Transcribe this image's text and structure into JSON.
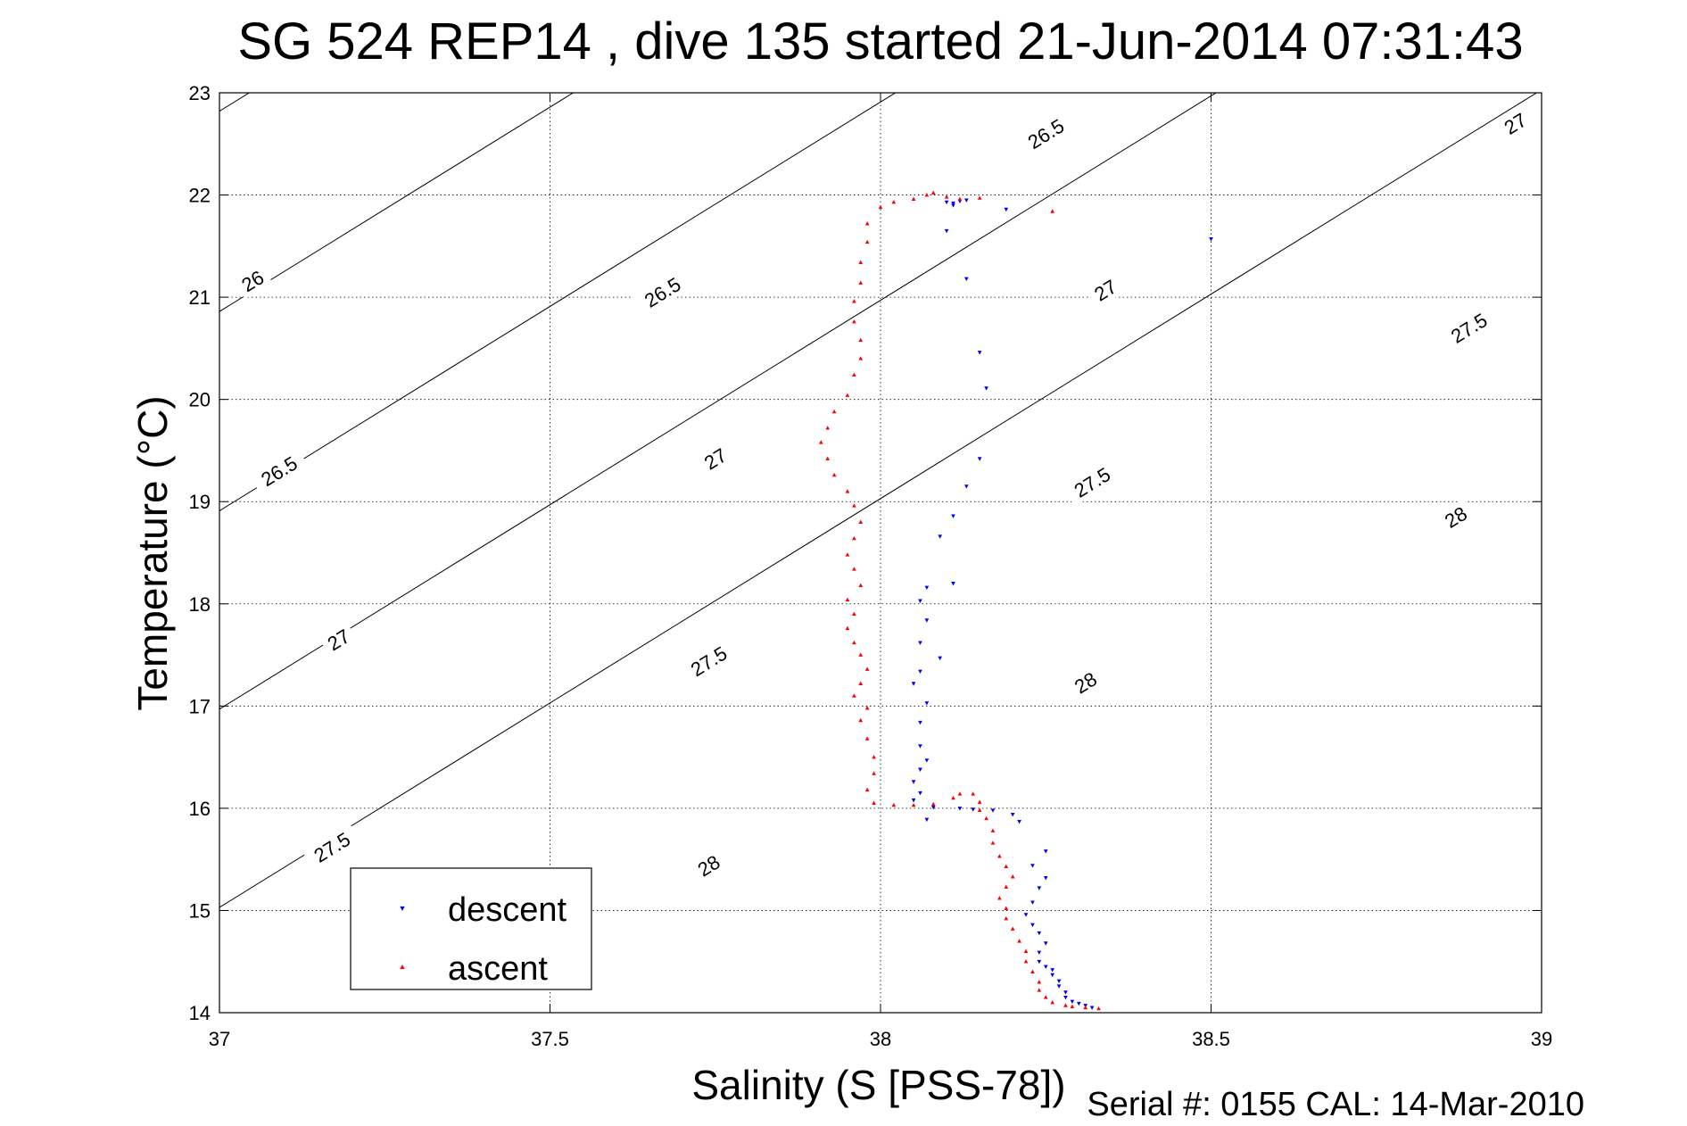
{
  "chart_data": {
    "type": "scatter",
    "title": "SG 524   REP14  , dive 135 started 21-Jun-2014 07:31:43",
    "xlabel": "Salinity (S [PSS-78])",
    "ylabel": "Temperature (°C)",
    "footer": "Serial #: 0155  CAL: 14-Mar-2010",
    "xlim": [
      37,
      39
    ],
    "ylim": [
      14,
      23
    ],
    "xticks": [
      37,
      37.5,
      38,
      38.5,
      39
    ],
    "yticks": [
      14,
      15,
      16,
      17,
      18,
      19,
      20,
      21,
      22,
      23
    ],
    "x_tick_labels": [
      "37",
      "37.5",
      "38",
      "38.5",
      "39"
    ],
    "y_tick_labels": [
      "14",
      "15",
      "16",
      "17",
      "18",
      "19",
      "20",
      "21",
      "22",
      "23"
    ],
    "grid": true,
    "legend_position": "bottom-left",
    "density_contours": [
      {
        "level": 26.0,
        "label": "26",
        "points": [
          [
            37.0,
            22.82
          ],
          [
            39.0,
            30.82
          ]
        ],
        "label_positions": [
          [
            37.66,
            25.1
          ],
          [
            37.05,
            21.16
          ]
        ]
      },
      {
        "level": 26.5,
        "label": "26.5",
        "points": [
          [
            37.0,
            20.86
          ],
          [
            39.0,
            28.86
          ]
        ],
        "label_positions": [
          [
            38.25,
            22.6
          ],
          [
            37.67,
            21.05
          ],
          [
            37.09,
            19.3
          ]
        ]
      },
      {
        "level": 27.0,
        "label": "27",
        "points": [
          [
            37.0,
            18.91
          ],
          [
            39.0,
            26.91
          ]
        ],
        "label_positions": [
          [
            38.96,
            22.7
          ],
          [
            38.34,
            21.07
          ],
          [
            37.75,
            19.42
          ],
          [
            37.18,
            17.65
          ]
        ]
      },
      {
        "level": 27.5,
        "label": "27.5",
        "points": [
          [
            37.0,
            16.97
          ],
          [
            39.0,
            24.97
          ]
        ],
        "label_positions": [
          [
            38.89,
            20.7
          ],
          [
            38.32,
            19.19
          ],
          [
            37.74,
            17.44
          ],
          [
            37.17,
            15.62
          ]
        ]
      },
      {
        "level": 28.0,
        "label": "28",
        "points": [
          [
            37.0,
            15.03
          ],
          [
            39.0,
            23.03
          ]
        ],
        "label_positions": [
          [
            38.87,
            18.85
          ],
          [
            38.31,
            17.23
          ],
          [
            37.74,
            15.44
          ]
        ]
      }
    ],
    "series": [
      {
        "name": "descent",
        "color": "#0000ff",
        "marker": "triangle-down",
        "points": [
          [
            38.1,
            21.93
          ],
          [
            38.11,
            21.92
          ],
          [
            38.12,
            21.94
          ],
          [
            38.11,
            21.9
          ],
          [
            38.13,
            21.95
          ],
          [
            38.19,
            21.86
          ],
          [
            38.1,
            21.65
          ],
          [
            38.5,
            21.57
          ],
          [
            38.13,
            21.18
          ],
          [
            38.15,
            20.46
          ],
          [
            38.16,
            20.11
          ],
          [
            38.15,
            19.42
          ],
          [
            38.13,
            19.15
          ],
          [
            38.11,
            18.86
          ],
          [
            38.09,
            18.66
          ],
          [
            38.11,
            18.2
          ],
          [
            38.07,
            18.16
          ],
          [
            38.06,
            18.03
          ],
          [
            38.07,
            17.84
          ],
          [
            38.06,
            17.62
          ],
          [
            38.09,
            17.47
          ],
          [
            38.06,
            17.34
          ],
          [
            38.05,
            17.22
          ],
          [
            38.07,
            17.03
          ],
          [
            38.06,
            16.84
          ],
          [
            38.06,
            16.61
          ],
          [
            38.07,
            16.47
          ],
          [
            38.06,
            16.38
          ],
          [
            38.05,
            16.26
          ],
          [
            38.06,
            16.15
          ],
          [
            38.05,
            16.08
          ],
          [
            38.07,
            15.89
          ],
          [
            38.08,
            16.01
          ],
          [
            38.12,
            16.0
          ],
          [
            38.14,
            15.99
          ],
          [
            38.17,
            15.98
          ],
          [
            38.2,
            15.94
          ],
          [
            38.21,
            15.87
          ],
          [
            38.25,
            15.58
          ],
          [
            38.23,
            15.44
          ],
          [
            38.25,
            15.32
          ],
          [
            38.24,
            15.22
          ],
          [
            38.23,
            15.08
          ],
          [
            38.22,
            14.96
          ],
          [
            38.23,
            14.86
          ],
          [
            38.24,
            14.78
          ],
          [
            38.25,
            14.68
          ],
          [
            38.24,
            14.59
          ],
          [
            38.24,
            14.5
          ],
          [
            38.25,
            14.45
          ],
          [
            38.26,
            14.42
          ],
          [
            38.26,
            14.37
          ],
          [
            38.27,
            14.31
          ],
          [
            38.27,
            14.26
          ],
          [
            38.28,
            14.2
          ],
          [
            38.28,
            14.15
          ],
          [
            38.29,
            14.11
          ],
          [
            38.3,
            14.09
          ],
          [
            38.31,
            14.07
          ],
          [
            38.32,
            14.05
          ]
        ]
      },
      {
        "name": "ascent",
        "color": "#ff0000",
        "marker": "triangle-up",
        "points": [
          [
            38.33,
            14.04
          ],
          [
            38.31,
            14.05
          ],
          [
            38.29,
            14.06
          ],
          [
            38.28,
            14.07
          ],
          [
            38.26,
            14.1
          ],
          [
            38.25,
            14.15
          ],
          [
            38.24,
            14.22
          ],
          [
            38.24,
            14.3
          ],
          [
            38.23,
            14.4
          ],
          [
            38.22,
            14.5
          ],
          [
            38.22,
            14.6
          ],
          [
            38.21,
            14.7
          ],
          [
            38.2,
            14.82
          ],
          [
            38.19,
            14.92
          ],
          [
            38.19,
            15.02
          ],
          [
            38.18,
            15.12
          ],
          [
            38.19,
            15.23
          ],
          [
            38.2,
            15.33
          ],
          [
            38.19,
            15.43
          ],
          [
            38.18,
            15.53
          ],
          [
            38.17,
            15.66
          ],
          [
            38.17,
            15.78
          ],
          [
            38.16,
            15.9
          ],
          [
            38.15,
            15.98
          ],
          [
            38.15,
            16.06
          ],
          [
            38.14,
            16.14
          ],
          [
            38.12,
            16.14
          ],
          [
            38.11,
            16.1
          ],
          [
            38.08,
            16.04
          ],
          [
            38.05,
            16.03
          ],
          [
            38.02,
            16.03
          ],
          [
            37.99,
            16.05
          ],
          [
            37.98,
            16.18
          ],
          [
            37.99,
            16.34
          ],
          [
            37.99,
            16.5
          ],
          [
            37.98,
            16.68
          ],
          [
            37.97,
            16.86
          ],
          [
            37.98,
            16.98
          ],
          [
            37.96,
            17.1
          ],
          [
            37.97,
            17.22
          ],
          [
            37.98,
            17.36
          ],
          [
            37.97,
            17.5
          ],
          [
            37.96,
            17.62
          ],
          [
            37.95,
            17.76
          ],
          [
            37.96,
            17.9
          ],
          [
            37.95,
            18.04
          ],
          [
            37.97,
            18.18
          ],
          [
            37.96,
            18.34
          ],
          [
            37.95,
            18.48
          ],
          [
            37.96,
            18.64
          ],
          [
            37.97,
            18.8
          ],
          [
            37.96,
            18.96
          ],
          [
            37.95,
            19.1
          ],
          [
            37.93,
            19.26
          ],
          [
            37.92,
            19.42
          ],
          [
            37.91,
            19.58
          ],
          [
            37.92,
            19.72
          ],
          [
            37.93,
            19.88
          ],
          [
            37.95,
            20.04
          ],
          [
            37.96,
            20.24
          ],
          [
            37.97,
            20.4
          ],
          [
            37.97,
            20.58
          ],
          [
            37.96,
            20.76
          ],
          [
            37.96,
            20.96
          ],
          [
            37.97,
            21.14
          ],
          [
            37.97,
            21.34
          ],
          [
            37.98,
            21.54
          ],
          [
            37.98,
            21.72
          ],
          [
            38.0,
            21.88
          ],
          [
            38.02,
            21.93
          ],
          [
            38.05,
            21.96
          ],
          [
            38.07,
            22.0
          ],
          [
            38.08,
            22.02
          ],
          [
            38.1,
            21.98
          ],
          [
            38.12,
            21.96
          ],
          [
            38.15,
            21.97
          ],
          [
            38.26,
            21.84
          ]
        ]
      }
    ]
  }
}
